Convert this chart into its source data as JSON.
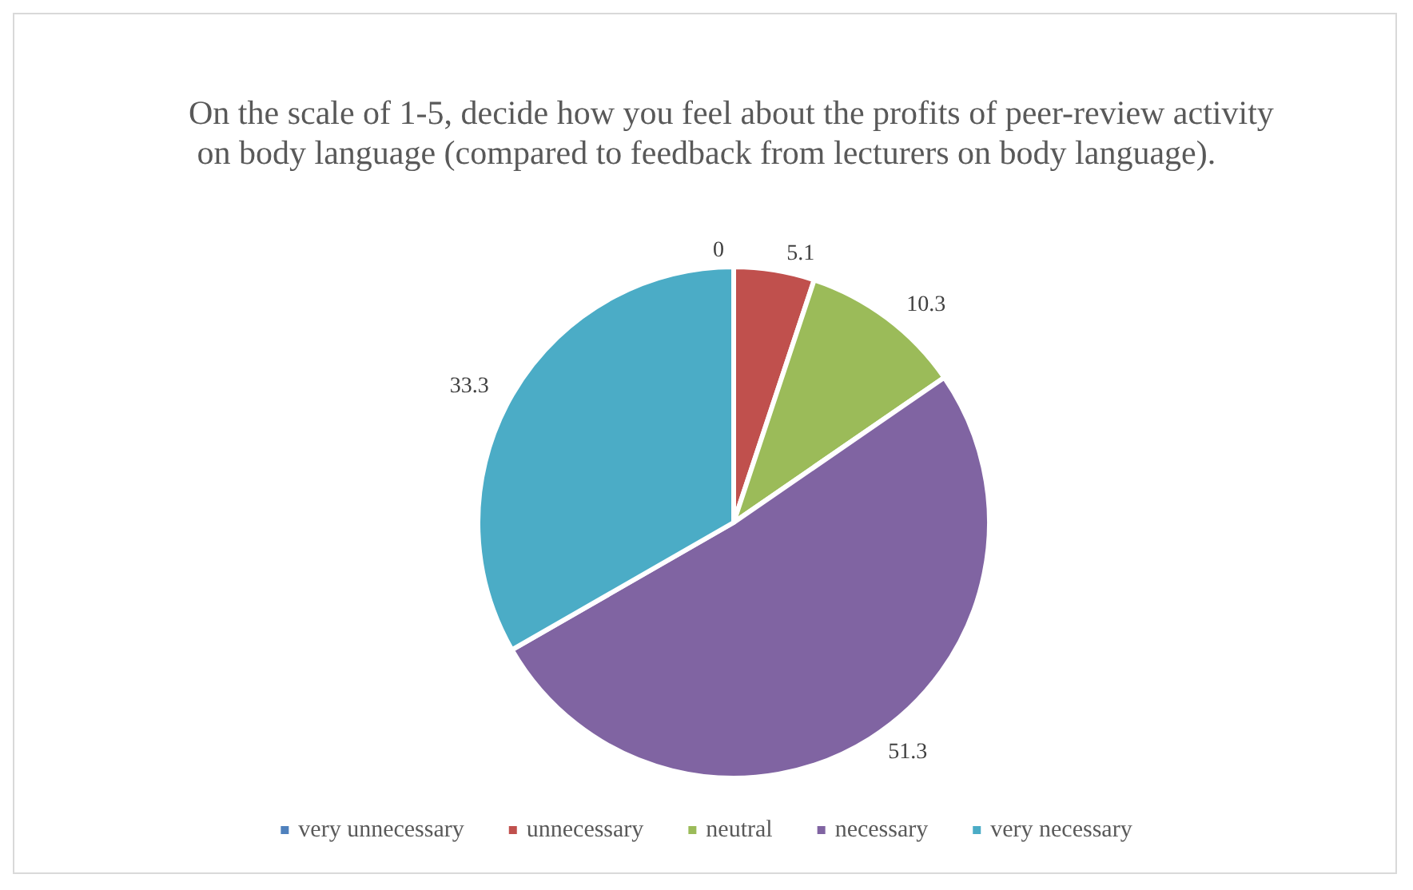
{
  "chart_data": {
    "type": "pie",
    "title": "On the scale of 1-5, decide how you feel about the profits of peer-review activity on body language (compared to feedback from lecturers on body language).",
    "categories": [
      "very unnecessary",
      "unnecessary",
      "neutral",
      "necessary",
      "very necessary"
    ],
    "values": [
      0,
      5.1,
      10.3,
      51.3,
      33.3
    ],
    "colors": [
      "#4f81bd",
      "#c0504d",
      "#9bbb59",
      "#8064a2",
      "#4bacc6"
    ],
    "value_labels": [
      "0",
      "5.1",
      "10.3",
      "51.3",
      "33.3"
    ],
    "legend": "bottom"
  }
}
